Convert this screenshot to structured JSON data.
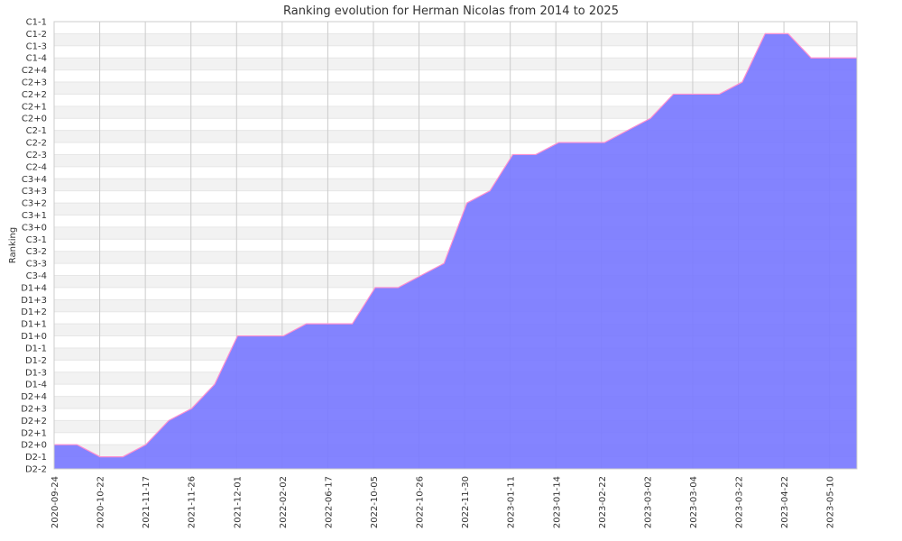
{
  "chart_data": {
    "type": "area",
    "title": "Ranking evolution for Herman Nicolas from 2014 to 2025",
    "xlabel": "",
    "ylabel": "Ranking",
    "ranks": [
      "D2-2",
      "D2-1",
      "D2+0",
      "D2+1",
      "D2+2",
      "D2+3",
      "D2+4",
      "D1-4",
      "D1-3",
      "D1-2",
      "D1-1",
      "D1+0",
      "D1+1",
      "D1+2",
      "D1+3",
      "D1+4",
      "C3-4",
      "C3-3",
      "C3-2",
      "C3-1",
      "C3+0",
      "C3+1",
      "C3+2",
      "C3+3",
      "C3+4",
      "C2-4",
      "C2-3",
      "C2-2",
      "C2-1",
      "C2+0",
      "C2+1",
      "C2+2",
      "C2+3",
      "C2+4",
      "C1-4",
      "C1-3",
      "C1-2",
      "C1-1"
    ],
    "x_ticks": [
      "2020-09-24",
      "2020-10-22",
      "2021-11-17",
      "2021-11-26",
      "2021-12-01",
      "2022-02-02",
      "2022-06-17",
      "2022-10-05",
      "2022-10-26",
      "2022-11-30",
      "2023-01-11",
      "2023-01-14",
      "2023-02-22",
      "2023-03-02",
      "2023-03-04",
      "2023-03-22",
      "2023-04-22",
      "2023-05-10"
    ],
    "series": [
      {
        "values": [
          "D2+0",
          "D2+0",
          "D2-1",
          "D2-1",
          "D2+0",
          "D2+2",
          "D2+3",
          "D1-4",
          "D1+0",
          "D1+0",
          "D1+0",
          "D1+1",
          "D1+1",
          "D1+1",
          "D1+4",
          "D1+4",
          "C3-4",
          "C3-3",
          "C3+2",
          "C3+3",
          "C2-3",
          "C2-3",
          "C2-2",
          "C2-2",
          "C2-2",
          "C2-1",
          "C2+0",
          "C2+2",
          "C2+2",
          "C2+2",
          "C2+3",
          "C1-2",
          "C1-2",
          "C1-4",
          "C1-4",
          "C1-4"
        ]
      }
    ],
    "colors": {
      "fill": "#7a7aff",
      "line": "#ff8fd0",
      "grid_band": "#f2f2f2"
    },
    "grid": true
  }
}
